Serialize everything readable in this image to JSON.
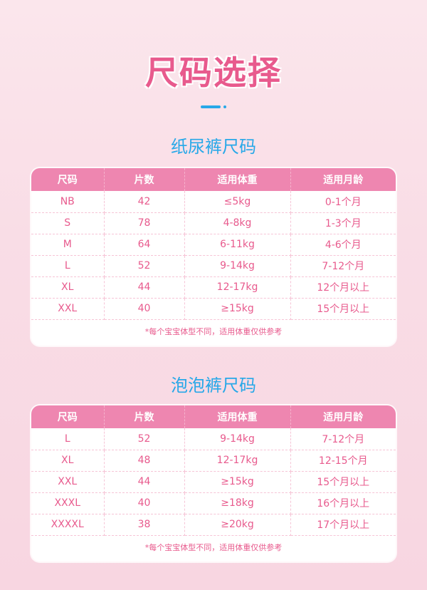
{
  "title": "尺码选择",
  "colors": {
    "accent": "#e85a8d",
    "header": "#ee86b0",
    "blue": "#27a8e8"
  },
  "headers": [
    "尺码",
    "片数",
    "适用体重",
    "适用月龄"
  ],
  "diaper": {
    "title": "纸尿裤尺码",
    "rows": [
      [
        "NB",
        "42",
        "≤5kg",
        "0-1个月"
      ],
      [
        "S",
        "78",
        "4-8kg",
        "1-3个月"
      ],
      [
        "M",
        "64",
        "6-11kg",
        "4-6个月"
      ],
      [
        "L",
        "52",
        "9-14kg",
        "7-12个月"
      ],
      [
        "XL",
        "44",
        "12-17kg",
        "12个月以上"
      ],
      [
        "XXL",
        "40",
        "≥15kg",
        "15个月以上"
      ]
    ],
    "note": "*每个宝宝体型不同，适用体重仅供参考"
  },
  "pants": {
    "title": "泡泡裤尺码",
    "rows": [
      [
        "L",
        "52",
        "9-14kg",
        "7-12个月"
      ],
      [
        "XL",
        "48",
        "12-17kg",
        "12-15个月"
      ],
      [
        "XXL",
        "44",
        "≥15kg",
        "15个月以上"
      ],
      [
        "XXXL",
        "40",
        "≥18kg",
        "16个月以上"
      ],
      [
        "XXXXL",
        "38",
        "≥20kg",
        "17个月以上"
      ]
    ],
    "note": "*每个宝宝体型不同，适用体重仅供参考"
  }
}
